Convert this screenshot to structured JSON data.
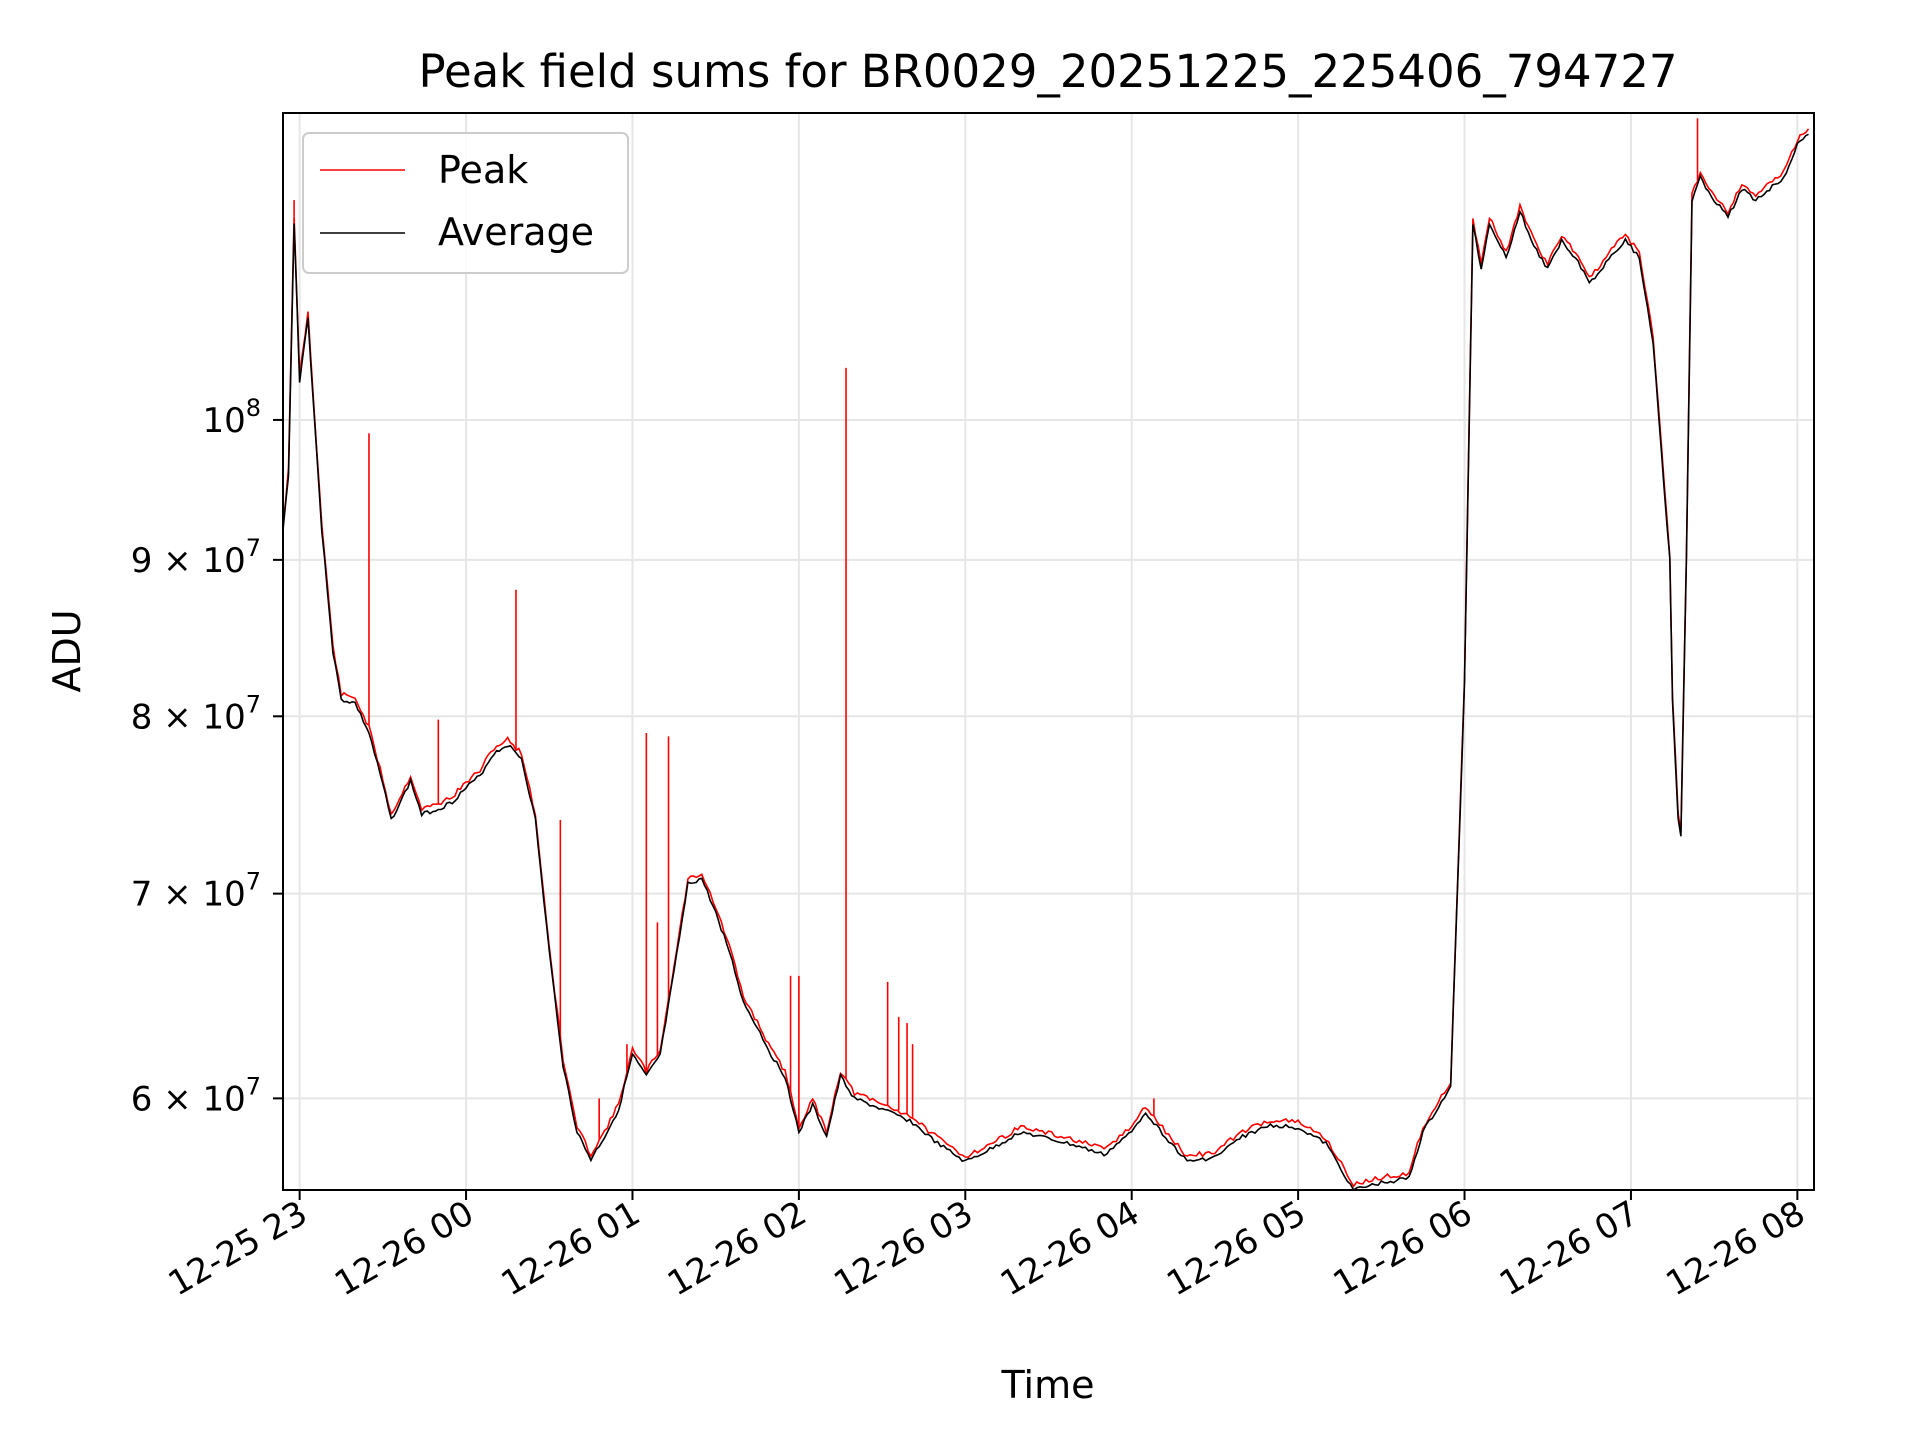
{
  "chart_data": {
    "type": "line",
    "title": "Peak field sums for BR0029_20251225_225406_794727",
    "xlabel": "Time",
    "ylabel": "ADU",
    "x_axis": {
      "type": "time",
      "range": [
        "2025-12-25 22:54",
        "2025-12-26 08:06"
      ],
      "ticks": [
        "2025-12-25 23:00",
        "2025-12-26 00:00",
        "2025-12-26 01:00",
        "2025-12-26 02:00",
        "2025-12-26 03:00",
        "2025-12-26 04:00",
        "2025-12-26 05:00",
        "2025-12-26 06:00",
        "2025-12-26 07:00",
        "2025-12-26 08:00"
      ],
      "tick_labels": [
        "12-25 23",
        "12-26 00",
        "12-26 01",
        "12-26 02",
        "12-26 03",
        "12-26 04",
        "12-26 05",
        "12-26 06",
        "12-26 07",
        "12-26 08"
      ]
    },
    "y_axis": {
      "scale": "log",
      "range": [
        56000000,
        126000000
      ],
      "ticks": [
        60000000,
        70000000,
        80000000,
        90000000,
        100000000
      ],
      "tick_labels": [
        {
          "mantissa": "6",
          "exponent": "7"
        },
        {
          "mantissa": "7",
          "exponent": "7"
        },
        {
          "mantissa": "8",
          "exponent": "7"
        },
        {
          "mantissa": "9",
          "exponent": "7"
        },
        {
          "mantissa": "",
          "exponent": "8"
        }
      ]
    },
    "grid": true,
    "legend": {
      "placement": "upper-left"
    },
    "series": [
      {
        "name": "Average",
        "color": "#000000",
        "points": [
          [
            "2025-12-25 22:54",
            92000000
          ],
          [
            "2025-12-25 22:56",
            96000000
          ],
          [
            "2025-12-25 22:58",
            116000000
          ],
          [
            "2025-12-25 23:00",
            103000000
          ],
          [
            "2025-12-25 23:03",
            108000000
          ],
          [
            "2025-12-25 23:06",
            98000000
          ],
          [
            "2025-12-25 23:08",
            92000000
          ],
          [
            "2025-12-25 23:10",
            88000000
          ],
          [
            "2025-12-25 23:12",
            84000000
          ],
          [
            "2025-12-25 23:15",
            81000000
          ],
          [
            "2025-12-25 23:20",
            80800000
          ],
          [
            "2025-12-25 23:25",
            79000000
          ],
          [
            "2025-12-25 23:30",
            76000000
          ],
          [
            "2025-12-25 23:33",
            74000000
          ],
          [
            "2025-12-25 23:37",
            75200000
          ],
          [
            "2025-12-25 23:40",
            76200000
          ],
          [
            "2025-12-25 23:44",
            74300000
          ],
          [
            "2025-12-25 23:50",
            74600000
          ],
          [
            "2025-12-25 23:55",
            75000000
          ],
          [
            "2025-12-26 00:00",
            75800000
          ],
          [
            "2025-12-26 00:05",
            76500000
          ],
          [
            "2025-12-26 00:10",
            77800000
          ],
          [
            "2025-12-26 00:15",
            78300000
          ],
          [
            "2025-12-26 00:20",
            77500000
          ],
          [
            "2025-12-26 00:25",
            74000000
          ],
          [
            "2025-12-26 00:30",
            67000000
          ],
          [
            "2025-12-26 00:35",
            61500000
          ],
          [
            "2025-12-26 00:40",
            58500000
          ],
          [
            "2025-12-26 00:45",
            57300000
          ],
          [
            "2025-12-26 00:50",
            58300000
          ],
          [
            "2025-12-26 00:55",
            59500000
          ],
          [
            "2025-12-26 01:00",
            62000000
          ],
          [
            "2025-12-26 01:05",
            61000000
          ],
          [
            "2025-12-26 01:10",
            62000000
          ],
          [
            "2025-12-26 01:15",
            66000000
          ],
          [
            "2025-12-26 01:20",
            70500000
          ],
          [
            "2025-12-26 01:25",
            70800000
          ],
          [
            "2025-12-26 01:30",
            69000000
          ],
          [
            "2025-12-26 01:35",
            67000000
          ],
          [
            "2025-12-26 01:40",
            64500000
          ],
          [
            "2025-12-26 01:45",
            63300000
          ],
          [
            "2025-12-26 01:50",
            62000000
          ],
          [
            "2025-12-26 01:55",
            61000000
          ],
          [
            "2025-12-26 02:00",
            58500000
          ],
          [
            "2025-12-26 02:05",
            59700000
          ],
          [
            "2025-12-26 02:10",
            58300000
          ],
          [
            "2025-12-26 02:15",
            61000000
          ],
          [
            "2025-12-26 02:20",
            60000000
          ],
          [
            "2025-12-26 02:30",
            59500000
          ],
          [
            "2025-12-26 02:40",
            59000000
          ],
          [
            "2025-12-26 02:50",
            58000000
          ],
          [
            "2025-12-26 03:00",
            57200000
          ],
          [
            "2025-12-26 03:10",
            57800000
          ],
          [
            "2025-12-26 03:20",
            58500000
          ],
          [
            "2025-12-26 03:30",
            58200000
          ],
          [
            "2025-12-26 03:40",
            57900000
          ],
          [
            "2025-12-26 03:50",
            57500000
          ],
          [
            "2025-12-26 04:00",
            58500000
          ],
          [
            "2025-12-26 04:05",
            59400000
          ],
          [
            "2025-12-26 04:10",
            58600000
          ],
          [
            "2025-12-26 04:20",
            57200000
          ],
          [
            "2025-12-26 04:30",
            57400000
          ],
          [
            "2025-12-26 04:40",
            58300000
          ],
          [
            "2025-12-26 04:50",
            58800000
          ],
          [
            "2025-12-26 05:00",
            58700000
          ],
          [
            "2025-12-26 05:10",
            58000000
          ],
          [
            "2025-12-26 05:20",
            56000000
          ],
          [
            "2025-12-26 05:30",
            56300000
          ],
          [
            "2025-12-26 05:40",
            56500000
          ],
          [
            "2025-12-26 05:45",
            58500000
          ],
          [
            "2025-12-26 05:55",
            60500000
          ],
          [
            "2025-12-26 06:00",
            82000000
          ],
          [
            "2025-12-26 06:03",
            116000000
          ],
          [
            "2025-12-26 06:06",
            112000000
          ],
          [
            "2025-12-26 06:09",
            116000000
          ],
          [
            "2025-12-26 06:15",
            113000000
          ],
          [
            "2025-12-26 06:20",
            117000000
          ],
          [
            "2025-12-26 06:25",
            114000000
          ],
          [
            "2025-12-26 06:30",
            112000000
          ],
          [
            "2025-12-26 06:35",
            114500000
          ],
          [
            "2025-12-26 06:40",
            113000000
          ],
          [
            "2025-12-26 06:45",
            111000000
          ],
          [
            "2025-12-26 06:48",
            111500000
          ],
          [
            "2025-12-26 06:52",
            113000000
          ],
          [
            "2025-12-26 06:58",
            114500000
          ],
          [
            "2025-12-26 07:03",
            113000000
          ],
          [
            "2025-12-26 07:08",
            106000000
          ],
          [
            "2025-12-26 07:12",
            95000000
          ],
          [
            "2025-12-26 07:14",
            90000000
          ],
          [
            "2025-12-26 07:15",
            81000000
          ],
          [
            "2025-12-26 07:17",
            74000000
          ],
          [
            "2025-12-26 07:18",
            73000000
          ],
          [
            "2025-12-26 07:20",
            90000000
          ],
          [
            "2025-12-26 07:22",
            118000000
          ],
          [
            "2025-12-26 07:25",
            120000000
          ],
          [
            "2025-12-26 07:30",
            118000000
          ],
          [
            "2025-12-26 07:35",
            116500000
          ],
          [
            "2025-12-26 07:40",
            119000000
          ],
          [
            "2025-12-26 07:45",
            118000000
          ],
          [
            "2025-12-26 07:50",
            119000000
          ],
          [
            "2025-12-26 07:55",
            120000000
          ],
          [
            "2025-12-26 08:00",
            123000000
          ],
          [
            "2025-12-26 08:04",
            124000000
          ]
        ]
      },
      {
        "name": "Peak",
        "color": "#ff0000",
        "offset_ratio": 1.004,
        "spikes": [
          [
            "2025-12-25 22:54",
            117000000
          ],
          [
            "2025-12-25 22:58",
            118000000
          ],
          [
            "2025-12-25 23:25",
            99000000
          ],
          [
            "2025-12-25 23:50",
            79800000
          ],
          [
            "2025-12-26 00:18",
            88000000
          ],
          [
            "2025-12-26 00:34",
            74000000
          ],
          [
            "2025-12-26 00:48",
            60000000
          ],
          [
            "2025-12-26 00:58",
            62500000
          ],
          [
            "2025-12-26 01:05",
            79000000
          ],
          [
            "2025-12-26 01:09",
            68500000
          ],
          [
            "2025-12-26 01:13",
            78800000
          ],
          [
            "2025-12-26 01:57",
            65800000
          ],
          [
            "2025-12-26 02:00",
            65800000
          ],
          [
            "2025-12-26 02:17",
            104000000
          ],
          [
            "2025-12-26 02:32",
            65500000
          ],
          [
            "2025-12-26 02:36",
            63800000
          ],
          [
            "2025-12-26 02:39",
            63500000
          ],
          [
            "2025-12-26 02:41",
            62500000
          ],
          [
            "2025-12-26 04:08",
            60000000
          ],
          [
            "2025-12-26 07:24",
            125500000
          ]
        ]
      }
    ]
  }
}
